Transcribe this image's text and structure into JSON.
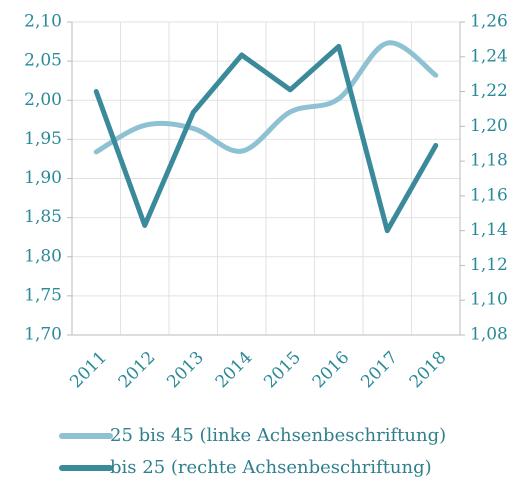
{
  "chart_data": {
    "type": "line",
    "categories": [
      "2011",
      "2012",
      "2013",
      "2014",
      "2015",
      "2016",
      "2017",
      "2018"
    ],
    "series": [
      {
        "name": "25 bis 45 (linke Achsenbeschriftung)",
        "color": "#8ec2d2",
        "axis": "y",
        "values": [
          1.934,
          1.968,
          1.964,
          1.935,
          1.985,
          2.002,
          2.073,
          2.032
        ]
      },
      {
        "name": "bis 25 (rechte Achsenbeschriftung)",
        "color": "#3a8a9b",
        "axis": "y2",
        "values": [
          1.22,
          1.143,
          1.208,
          1.241,
          1.221,
          1.246,
          1.14,
          1.189
        ]
      }
    ],
    "ylim": [
      1.7,
      2.1
    ],
    "yticks": [
      {
        "value": 1.7,
        "label": "1,70"
      },
      {
        "value": 1.75,
        "label": "1,75"
      },
      {
        "value": 1.8,
        "label": "1,80"
      },
      {
        "value": 1.85,
        "label": "1,85"
      },
      {
        "value": 1.9,
        "label": "1,90"
      },
      {
        "value": 1.95,
        "label": "1,95"
      },
      {
        "value": 2.0,
        "label": "2,00"
      },
      {
        "value": 2.05,
        "label": "2,05"
      },
      {
        "value": 2.1,
        "label": "2,10"
      }
    ],
    "y2lim": [
      1.08,
      1.26
    ],
    "y2ticks": [
      {
        "value": 1.08,
        "label": "1,08"
      },
      {
        "value": 1.1,
        "label": "1,10"
      },
      {
        "value": 1.12,
        "label": "1,12"
      },
      {
        "value": 1.14,
        "label": "1,14"
      },
      {
        "value": 1.16,
        "label": "1,16"
      },
      {
        "value": 1.18,
        "label": "1,18"
      },
      {
        "value": 1.2,
        "label": "1,20"
      },
      {
        "value": 1.22,
        "label": "1,22"
      },
      {
        "value": 1.24,
        "label": "1,24"
      },
      {
        "value": 1.26,
        "label": "1,26"
      }
    ],
    "grid": true,
    "legend": "bottom"
  }
}
